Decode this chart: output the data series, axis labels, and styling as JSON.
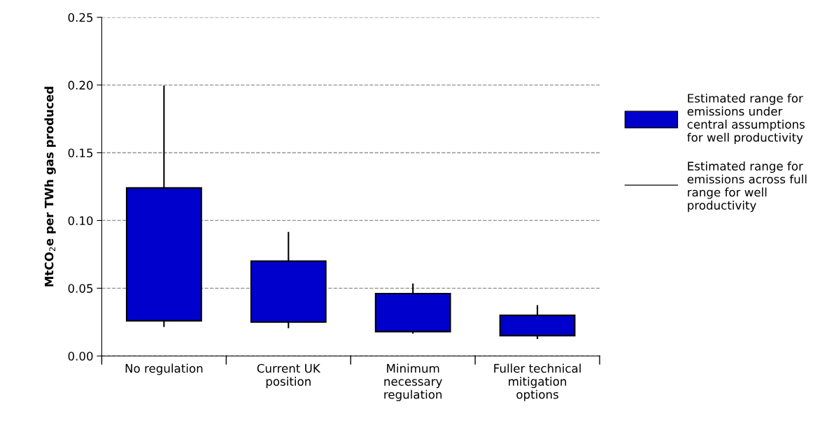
{
  "chart_data": {
    "type": "bar",
    "ylabel": "MtCO$_{2}$e per TWh gas produced",
    "categories": [
      "No regulation",
      "Current UK\nposition",
      "Minimum\nnecessary\nregulation",
      "Fuller technical\nmitigation\noptions"
    ],
    "series": [
      {
        "name": "Estimated range for emissions under central assumptions for well productivity",
        "color": "#0000cc",
        "base": [
          0.026,
          0.025,
          0.018,
          0.015
        ],
        "values": [
          0.098,
          0.045,
          0.028,
          0.015
        ],
        "errors": [
          [
            0.022,
            0.199
          ],
          [
            0.021,
            0.091
          ],
          [
            0.017,
            0.053
          ],
          [
            0.013,
            0.037
          ]
        ]
      }
    ],
    "annotations": [
      "Estimated range for emissions across full range for well productivity"
    ],
    "ylim": [
      0,
      0.25
    ],
    "yticks": [
      {
        "value": 0,
        "label": "0.00"
      },
      {
        "value": 0.05,
        "label": "0.05"
      },
      {
        "value": 0.1,
        "label": "0.10"
      },
      {
        "value": 0.15,
        "label": "0.15"
      },
      {
        "value": 0.2,
        "label": "0.20"
      },
      {
        "value": 0.25,
        "label": "0.25"
      }
    ],
    "grid": "y",
    "legend": "right"
  }
}
